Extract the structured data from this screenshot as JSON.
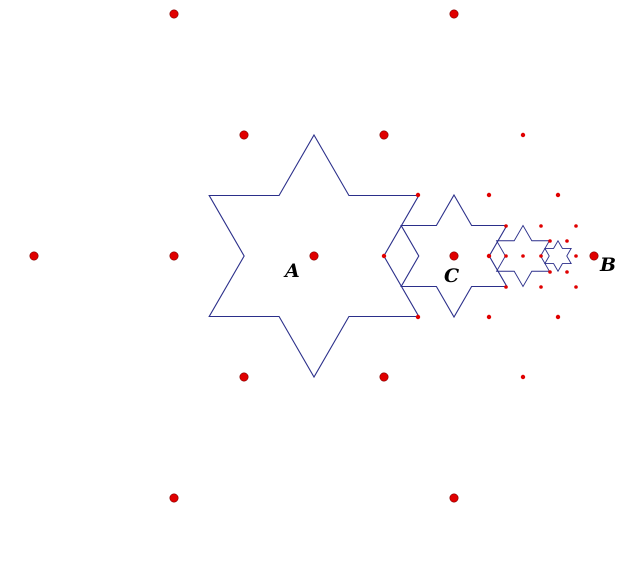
{
  "labels": {
    "a": "A",
    "b": "B",
    "c": "C"
  },
  "colors": {
    "star_stroke": "#2b2f8a",
    "dot_fill": "#e00000",
    "dot_stroke": "#800000",
    "label": "#000000"
  },
  "stars": [
    {
      "id": "A"
    },
    {
      "id": "C"
    },
    {
      "id": "s3"
    },
    {
      "id": "s4"
    }
  ]
}
